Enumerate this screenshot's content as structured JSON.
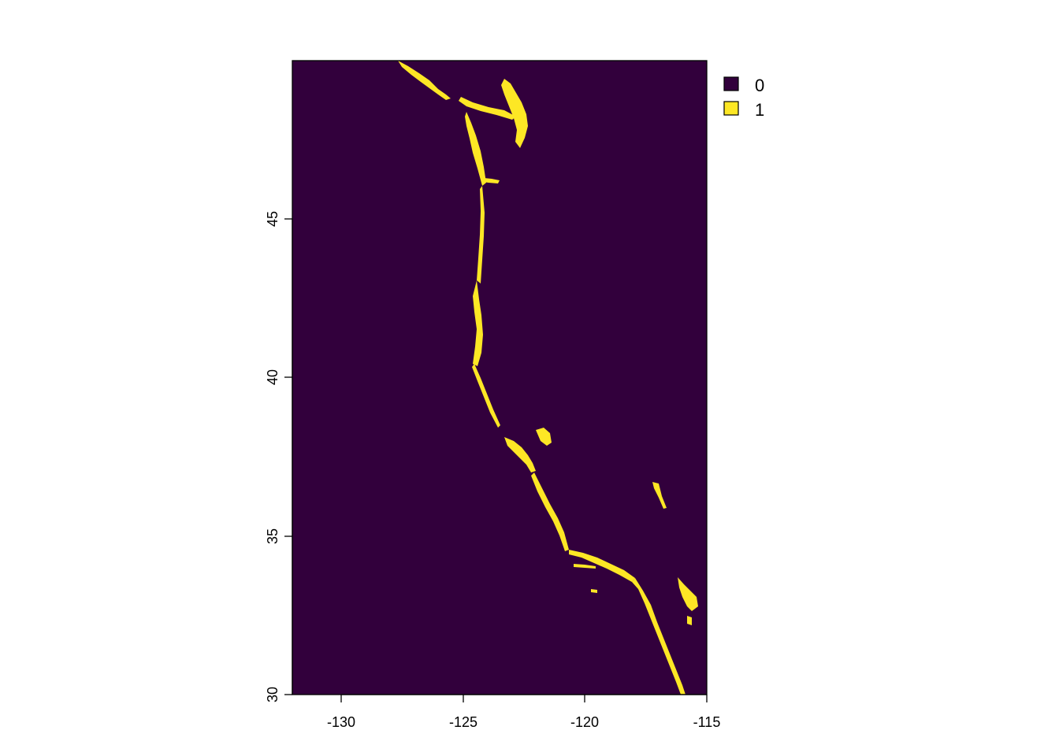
{
  "map": {
    "extent": {
      "xmin": -132,
      "xmax": -115,
      "ymin": 30,
      "ymax": 50
    },
    "x_ticks": [
      -130,
      -125,
      -120,
      -115
    ],
    "y_ticks": [
      30,
      35,
      40,
      45
    ],
    "x_tick_labels": [
      "-130",
      "-125",
      "-120",
      "-115"
    ],
    "y_tick_labels": [
      "30",
      "35",
      "40",
      "45"
    ],
    "background_color": "#32003C",
    "presence_color": "#FDE725"
  },
  "legend": {
    "items": [
      {
        "label": "0",
        "color": "#32003C"
      },
      {
        "label": "1",
        "color": "#FDE725"
      }
    ]
  }
}
